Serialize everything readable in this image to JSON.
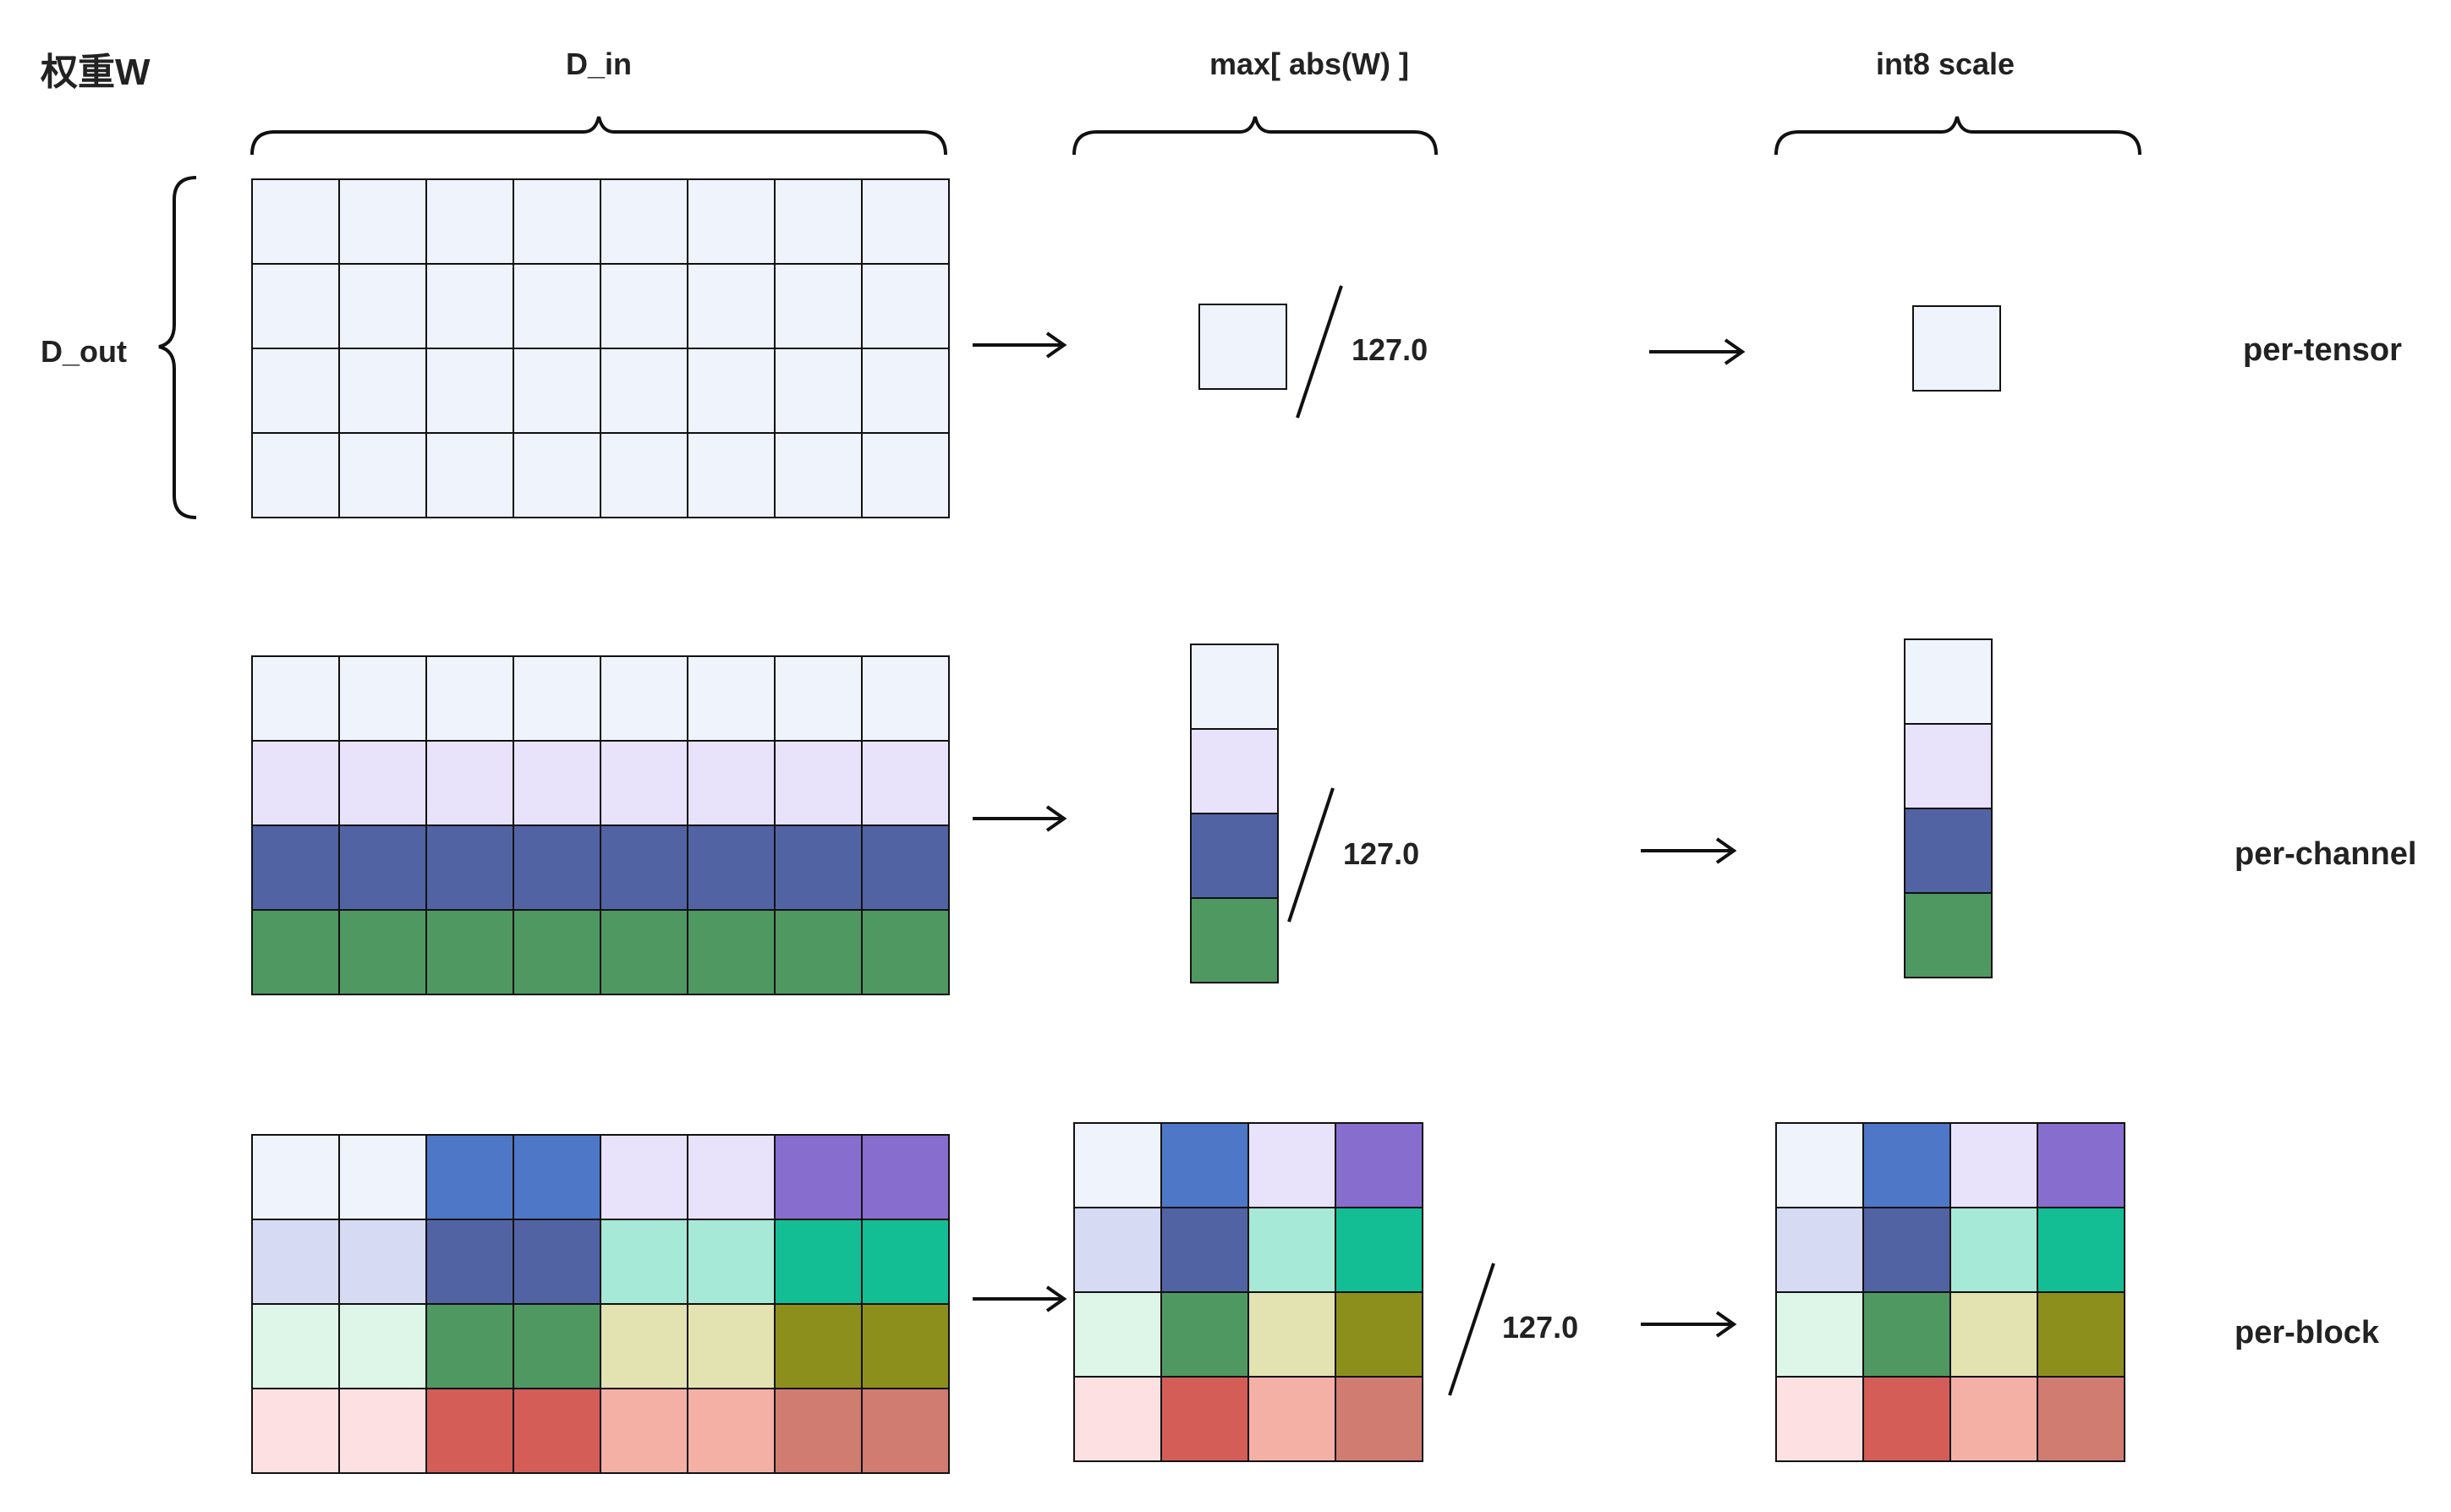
{
  "headers": {
    "weight_title": "权重W",
    "d_in": "D_in",
    "d_out": "D_out",
    "max_abs": "max[ abs(W) ]",
    "int8_scale": "int8 scale"
  },
  "divisor": "127.0",
  "colors": {
    "c0": "#eef3fc",
    "c1": "#e8e2fb",
    "c2": "#5263a4",
    "c3": "#4f9862",
    "c4": "#4e78c7",
    "c5": "#876dce",
    "c6": "#d6daf3",
    "c7": "#a6e9d7",
    "c8": "#14be95",
    "c9": "#def6e7",
    "c10": "#e3e3b1",
    "c11": "#8d8f1d",
    "c12": "#fde0e2",
    "c13": "#d45d58",
    "c14": "#f5b0a5",
    "c15": "#d07c71",
    "stroke": "#111111"
  },
  "rows": [
    {
      "label": "per-tensor",
      "weight_grid": [
        [
          "c0",
          "c0",
          "c0",
          "c0",
          "c0",
          "c0",
          "c0",
          "c0"
        ],
        [
          "c0",
          "c0",
          "c0",
          "c0",
          "c0",
          "c0",
          "c0",
          "c0"
        ],
        [
          "c0",
          "c0",
          "c0",
          "c0",
          "c0",
          "c0",
          "c0",
          "c0"
        ],
        [
          "c0",
          "c0",
          "c0",
          "c0",
          "c0",
          "c0",
          "c0",
          "c0"
        ]
      ],
      "max_grid": [
        [
          "c0"
        ]
      ],
      "scale_grid": [
        [
          "c0"
        ]
      ]
    },
    {
      "label": "per-channel",
      "weight_grid": [
        [
          "c0",
          "c0",
          "c0",
          "c0",
          "c0",
          "c0",
          "c0",
          "c0"
        ],
        [
          "c1",
          "c1",
          "c1",
          "c1",
          "c1",
          "c1",
          "c1",
          "c1"
        ],
        [
          "c2",
          "c2",
          "c2",
          "c2",
          "c2",
          "c2",
          "c2",
          "c2"
        ],
        [
          "c3",
          "c3",
          "c3",
          "c3",
          "c3",
          "c3",
          "c3",
          "c3"
        ]
      ],
      "max_grid": [
        [
          "c0"
        ],
        [
          "c1"
        ],
        [
          "c2"
        ],
        [
          "c3"
        ]
      ],
      "scale_grid": [
        [
          "c0"
        ],
        [
          "c1"
        ],
        [
          "c2"
        ],
        [
          "c3"
        ]
      ]
    },
    {
      "label": "per-block",
      "weight_grid": [
        [
          "c0",
          "c0",
          "c4",
          "c4",
          "c1",
          "c1",
          "c5",
          "c5"
        ],
        [
          "c6",
          "c6",
          "c2",
          "c2",
          "c7",
          "c7",
          "c8",
          "c8"
        ],
        [
          "c9",
          "c9",
          "c3",
          "c3",
          "c10",
          "c10",
          "c11",
          "c11"
        ],
        [
          "c12",
          "c12",
          "c13",
          "c13",
          "c14",
          "c14",
          "c15",
          "c15"
        ]
      ],
      "max_grid": [
        [
          "c0",
          "c4",
          "c1",
          "c5"
        ],
        [
          "c6",
          "c2",
          "c7",
          "c8"
        ],
        [
          "c9",
          "c3",
          "c10",
          "c11"
        ],
        [
          "c12",
          "c13",
          "c14",
          "c15"
        ]
      ],
      "scale_grid": [
        [
          "c0",
          "c4",
          "c1",
          "c5"
        ],
        [
          "c6",
          "c2",
          "c7",
          "c8"
        ],
        [
          "c9",
          "c3",
          "c10",
          "c11"
        ],
        [
          "c12",
          "c13",
          "c14",
          "c15"
        ]
      ]
    }
  ]
}
